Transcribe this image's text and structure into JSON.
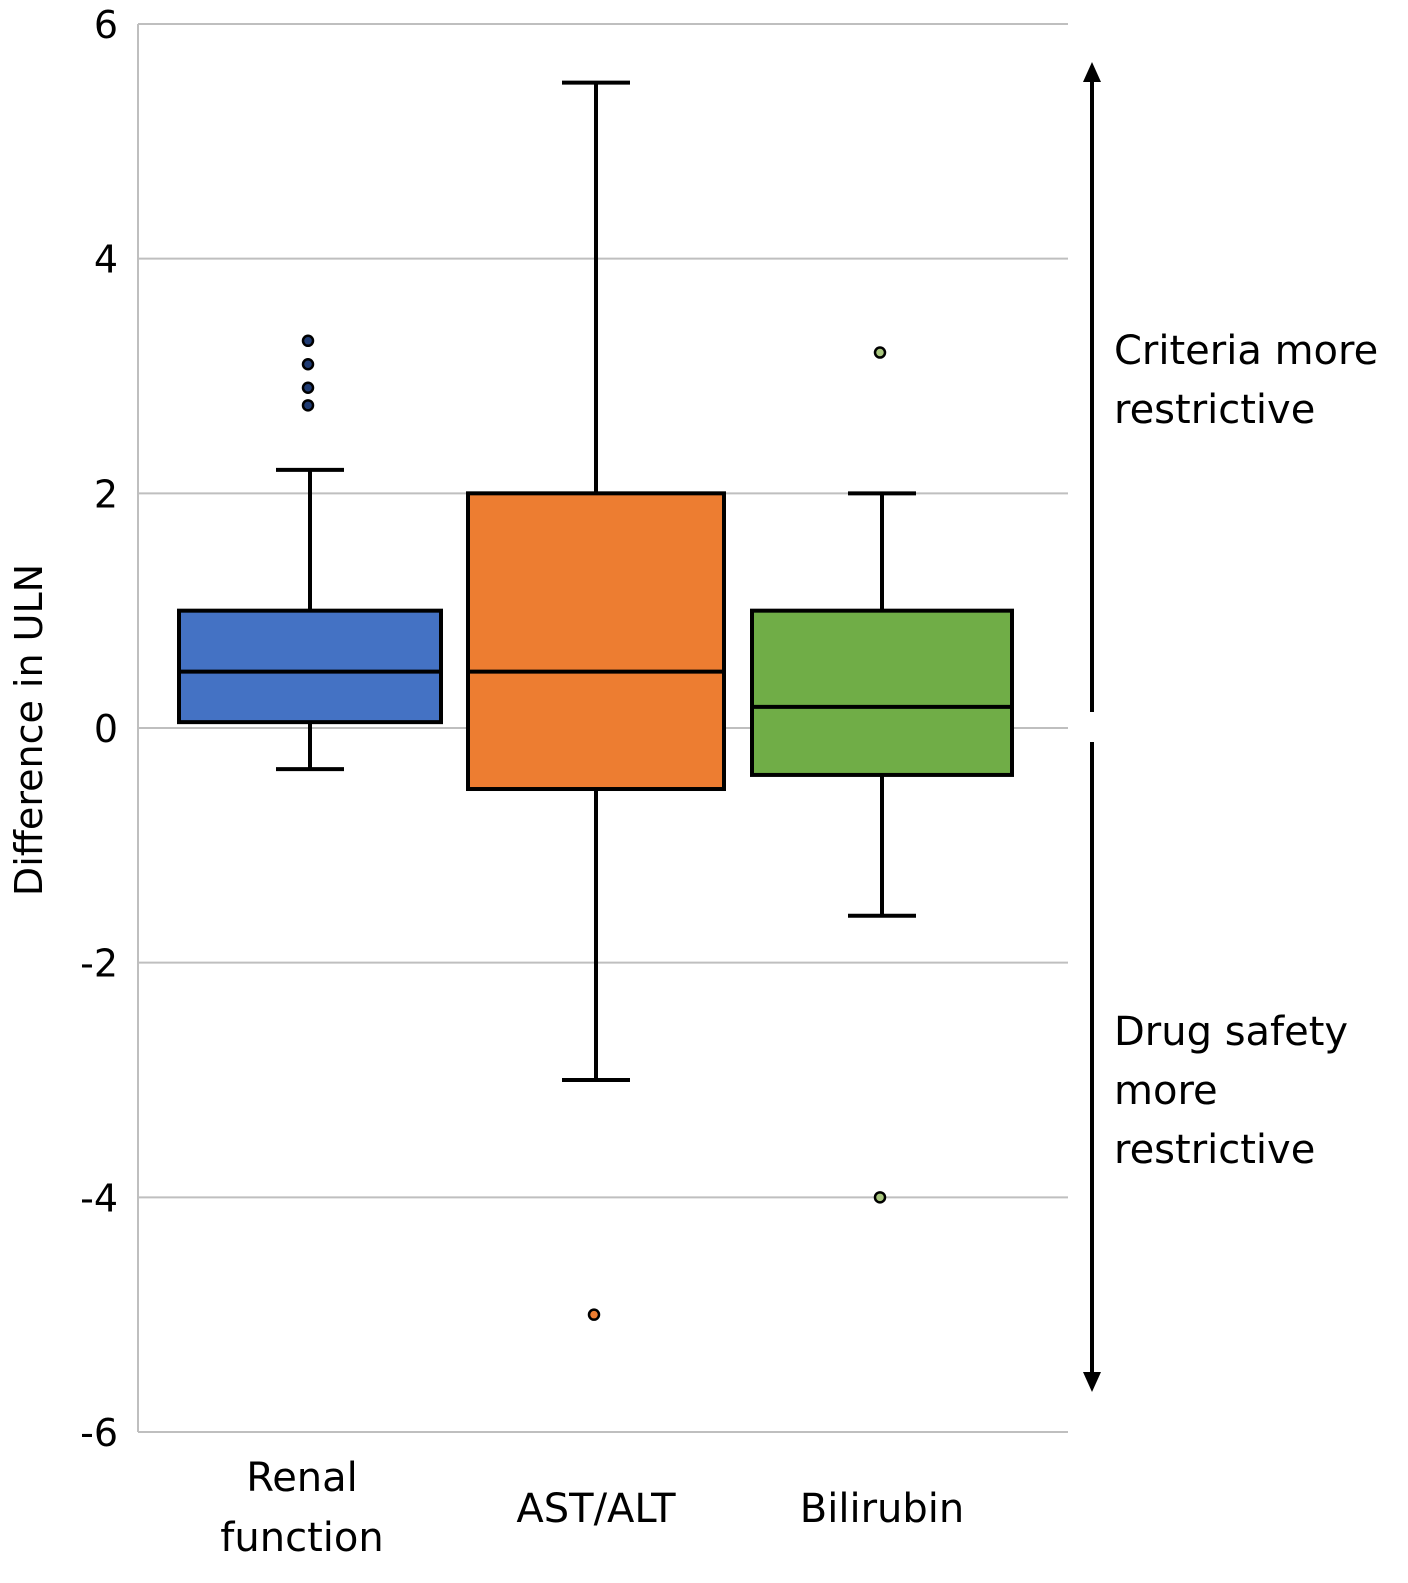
{
  "chart_data": {
    "type": "box",
    "ylabel": "Difference in ULN",
    "xlabel": "",
    "ylim": [
      -6,
      6
    ],
    "yticks": [
      6,
      4,
      2,
      0,
      -2,
      -4,
      -6
    ],
    "ytick_labels": [
      "6",
      "4",
      "2",
      "0",
      "-2",
      "-4",
      "-6"
    ],
    "grid": true,
    "categories": [
      {
        "label_lines": [
          "Renal",
          "function"
        ],
        "color": "#4472C4",
        "whisker_low": -0.35,
        "q1": 0.05,
        "median": 0.48,
        "q3": 1.0,
        "whisker_high": 2.2,
        "outliers": [
          3.3,
          3.1,
          2.9,
          2.75
        ],
        "outlier_color": "#1F3B73"
      },
      {
        "label_lines": [
          "AST/ALT"
        ],
        "color": "#ED7D31",
        "whisker_low": -3.0,
        "q1": -0.52,
        "median": 0.48,
        "q3": 2.0,
        "whisker_high": 5.5,
        "outliers": [
          -5.0
        ],
        "outlier_color": "#ED7D31"
      },
      {
        "label_lines": [
          "Bilirubin"
        ],
        "color": "#70AD47",
        "whisker_low": -1.6,
        "q1": -0.4,
        "median": 0.18,
        "q3": 1.0,
        "whisker_high": 2.0,
        "outliers": [
          3.2,
          -4.0
        ],
        "outlier_color": "#A9C77E"
      }
    ],
    "annotations": {
      "upper_lines": [
        "Criteria  more",
        "restrictive"
      ],
      "lower_lines": [
        "Drug safety",
        "more",
        "restrictive"
      ]
    }
  }
}
